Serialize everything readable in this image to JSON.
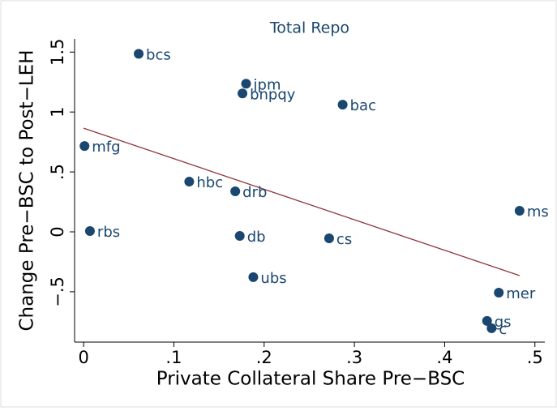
{
  "chart_data": {
    "type": "scatter",
    "title": "Total Repo",
    "x_label": "Private Collateral Share Pre−BSC",
    "y_label": "Change Pre−BSC to Post−LEH",
    "labels": [
      "bcs",
      "jpm",
      "bnpqy",
      "bac",
      "mfg",
      "hbc",
      "drb",
      "ms",
      "rbs",
      "db",
      "cs",
      "ubs",
      "mer",
      "gs",
      "c"
    ],
    "x": [
      0.061,
      0.18,
      0.176,
      0.287,
      0.001,
      0.117,
      0.168,
      0.483,
      0.007,
      0.173,
      0.272,
      0.188,
      0.46,
      0.447,
      0.452
    ],
    "values": [
      1.486,
      1.236,
      1.155,
      1.061,
      0.716,
      0.419,
      0.338,
      0.176,
      0.007,
      -0.034,
      -0.054,
      -0.378,
      -0.507,
      -0.743,
      -0.804
    ],
    "color": "#1a476f",
    "fit": {
      "x": [
        0,
        0.483
      ],
      "values": [
        0.865,
        -0.365
      ],
      "color": "#90353b"
    },
    "xlim": [
      -0.01,
      0.511
    ],
    "ylim": [
      -0.92,
      1.61
    ],
    "xticks": [
      0,
      {
        "value": 0.1,
        "label": ".1"
      },
      {
        "value": 0.2,
        "label": ".2"
      },
      {
        "value": 0.3,
        "label": ".3"
      },
      {
        "value": 0.4,
        "label": ".4"
      },
      {
        "value": 0.5,
        "label": ".5"
      }
    ],
    "yticks": [
      {
        "value": -0.5,
        "label": "−.5"
      },
      0,
      {
        "value": 0.5,
        "label": ".5"
      },
      1,
      1.5
    ]
  }
}
